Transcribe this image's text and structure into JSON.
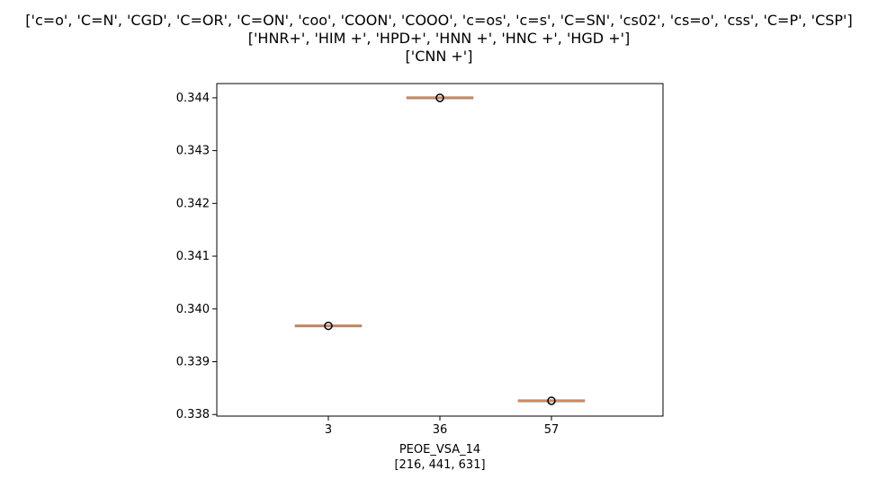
{
  "chart_data": {
    "type": "box",
    "title_lines": [
      "['c=o', 'C=N', 'CGD', 'C=OR', 'C=ON', 'coo', 'COON', 'COOO', 'c=os', 'c=s', 'C=SN', 'cs02', 'cs=o', 'css', 'C=P', 'CSP']",
      "['HNR+', 'HIM +', 'HPD+', 'HNN +', 'HNC +', 'HGD +']",
      "['CNN +']"
    ],
    "xlabel_lines": [
      "PEOE_VSA_14",
      "[216, 441, 631]"
    ],
    "ylabel": "",
    "categories": [
      "3",
      "36",
      "57"
    ],
    "values": [
      0.33968,
      0.344,
      0.33826
    ],
    "ylim": [
      0.33797,
      0.34427
    ],
    "yticks": [
      "0.338",
      "0.339",
      "0.340",
      "0.341",
      "0.342",
      "0.343",
      "0.344"
    ],
    "median_color": "#dd8452",
    "outlier_color": "#000000",
    "grid": false
  }
}
